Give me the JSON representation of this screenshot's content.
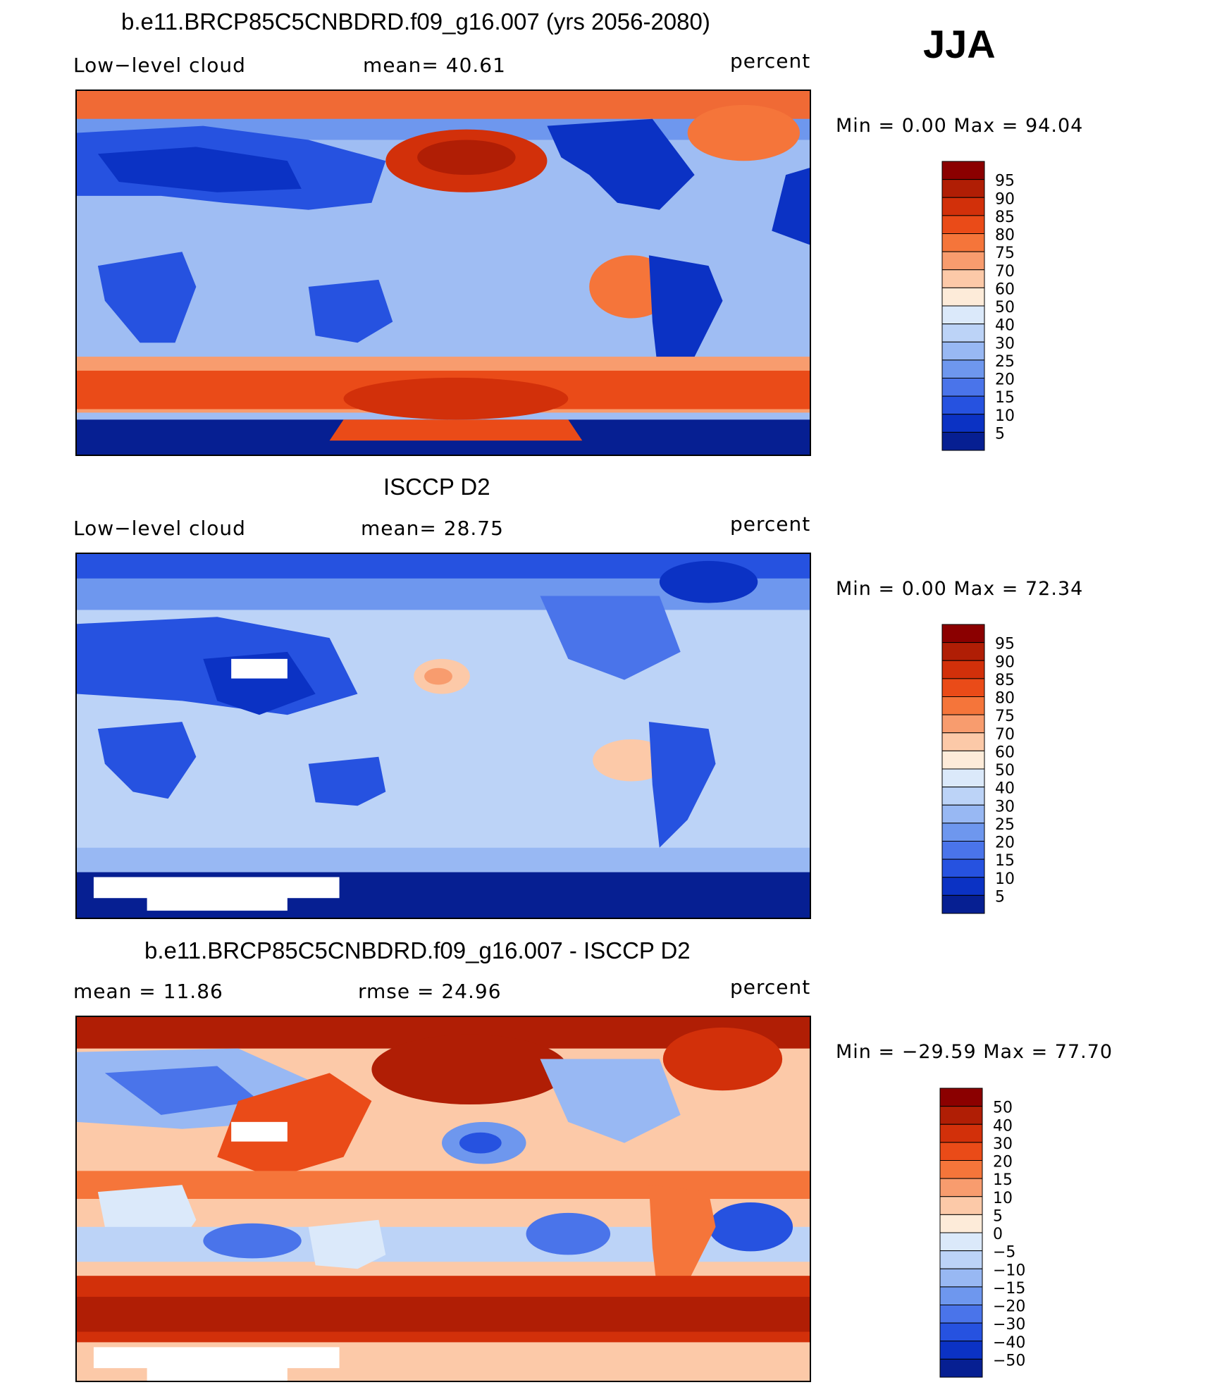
{
  "season": "JJA",
  "panels": [
    {
      "title": "b.e11.BRCP85C5CNBDRD.f09_g16.007 (yrs 2056-2080)",
      "left_label": "Low−level cloud",
      "mid_label": "mean=   40.61",
      "units": "percent",
      "minmax": "Min =     0.00 Max =    94.04"
    },
    {
      "title": "ISCCP D2",
      "left_label": "Low−level cloud",
      "mid_label": "mean=   28.75",
      "units": "percent",
      "minmax": "Min =     0.00 Max =    72.34"
    },
    {
      "title": "b.e11.BRCP85C5CNBDRD.f09_g16.007 - ISCCP D2",
      "left_label": "mean =    11.86",
      "mid_label": "rmse =    24.96",
      "units": "percent",
      "minmax": "Min = −29.59  Max =    77.70"
    }
  ],
  "colorbars": {
    "abs_levels": [
      "95",
      "90",
      "85",
      "80",
      "75",
      "70",
      "60",
      "50",
      "40",
      "30",
      "25",
      "20",
      "15",
      "10",
      "5"
    ],
    "abs_colors": [
      "#8b0000",
      "#b01e05",
      "#d2300a",
      "#ea4b18",
      "#f5753a",
      "#f89c6e",
      "#fcc9a8",
      "#fdebd9",
      "#dbe9fa",
      "#bcd3f7",
      "#98b8f3",
      "#6e97ee",
      "#4a74ea",
      "#2652e0",
      "#0b32c4",
      "#061f92"
    ],
    "diff_levels": [
      "50",
      "40",
      "30",
      "20",
      "15",
      "10",
      "5",
      "0",
      "−5",
      "−10",
      "−15",
      "−20",
      "−30",
      "−40",
      "−50"
    ],
    "diff_colors": [
      "#8b0000",
      "#b01e05",
      "#d2300a",
      "#ea4b18",
      "#f5753a",
      "#f89c6e",
      "#fcc9a8",
      "#fdebd9",
      "#dbe9fa",
      "#bcd3f7",
      "#98b8f3",
      "#6e97ee",
      "#4a74ea",
      "#2652e0",
      "#0b32c4",
      "#061f92"
    ]
  },
  "chart_data": [
    {
      "type": "heatmap",
      "title": "b.e11.BRCP85C5CNBDRD.f09_g16.007 (yrs 2056-2080)",
      "variable": "Low−level cloud",
      "units": "percent",
      "mean": 40.61,
      "min": 0.0,
      "max": 94.04,
      "contour_levels": [
        5,
        10,
        15,
        20,
        25,
        30,
        40,
        50,
        60,
        70,
        75,
        80,
        85,
        90,
        95
      ]
    },
    {
      "type": "heatmap",
      "title": "ISCCP D2",
      "variable": "Low−level cloud",
      "units": "percent",
      "mean": 28.75,
      "min": 0.0,
      "max": 72.34,
      "contour_levels": [
        5,
        10,
        15,
        20,
        25,
        30,
        40,
        50,
        60,
        70,
        75,
        80,
        85,
        90,
        95
      ]
    },
    {
      "type": "heatmap",
      "title": "b.e11.BRCP85C5CNBDRD.f09_g16.007 - ISCCP D2",
      "units": "percent",
      "mean": 11.86,
      "rmse": 24.96,
      "min": -29.59,
      "max": 77.7,
      "contour_levels": [
        -50,
        -40,
        -30,
        -20,
        -15,
        -10,
        -5,
        0,
        5,
        10,
        15,
        20,
        30,
        40,
        50
      ]
    }
  ]
}
